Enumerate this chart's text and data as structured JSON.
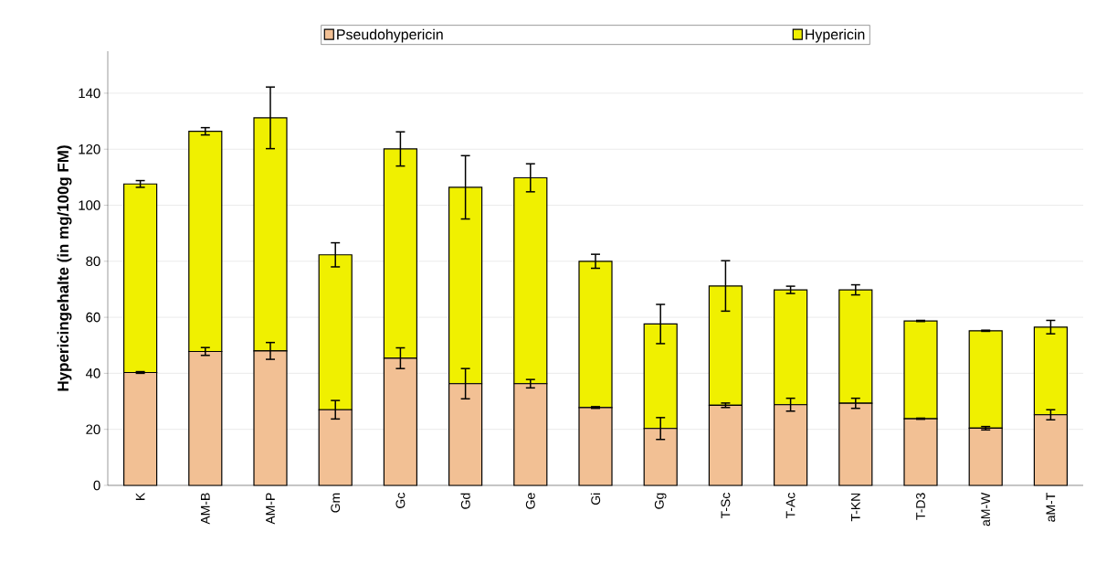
{
  "chart_data": {
    "type": "bar",
    "stacked": true,
    "ylabel": "Hypericingehalte (in mg/100g FM)",
    "categories": [
      "K",
      "AM-B",
      "AM-P",
      "Gm",
      "Gc",
      "Gd",
      "Ge",
      "Gi",
      "Gg",
      "T-Sc",
      "T-Ac",
      "T-KN",
      "T-D3",
      "aM-W",
      "aM-T"
    ],
    "series": [
      {
        "name": "Pseudohypericin",
        "color": "#f2c094",
        "values": [
          40.3,
          47.8,
          48,
          27,
          45.4,
          36.3,
          36.3,
          27.8,
          20.3,
          28.6,
          28.8,
          29.3,
          23.8,
          20.4,
          25.2
        ],
        "errors": [
          0.3,
          1.4,
          3,
          3.3,
          3.7,
          5.4,
          1.5,
          0.3,
          3.9,
          0.8,
          2.3,
          1.8,
          0.2,
          0.6,
          1.8
        ]
      },
      {
        "name": "Hypericin",
        "color": "#f0f000",
        "values": [
          67.3,
          78.6,
          83.2,
          55.3,
          74.7,
          70.1,
          73.5,
          52.2,
          37.3,
          42.6,
          41,
          40.5,
          34.9,
          34.8,
          31.3
        ],
        "errors": [
          1.2,
          1.3,
          11,
          4.3,
          6.1,
          11.3,
          5,
          2.5,
          7,
          9,
          1.3,
          1.8,
          0.2,
          0.2,
          2.4
        ]
      }
    ],
    "ylim": [
      0,
      155
    ],
    "yticks": [
      0,
      20,
      40,
      60,
      80,
      100,
      120,
      140
    ],
    "grid": "y",
    "legend": "top"
  }
}
